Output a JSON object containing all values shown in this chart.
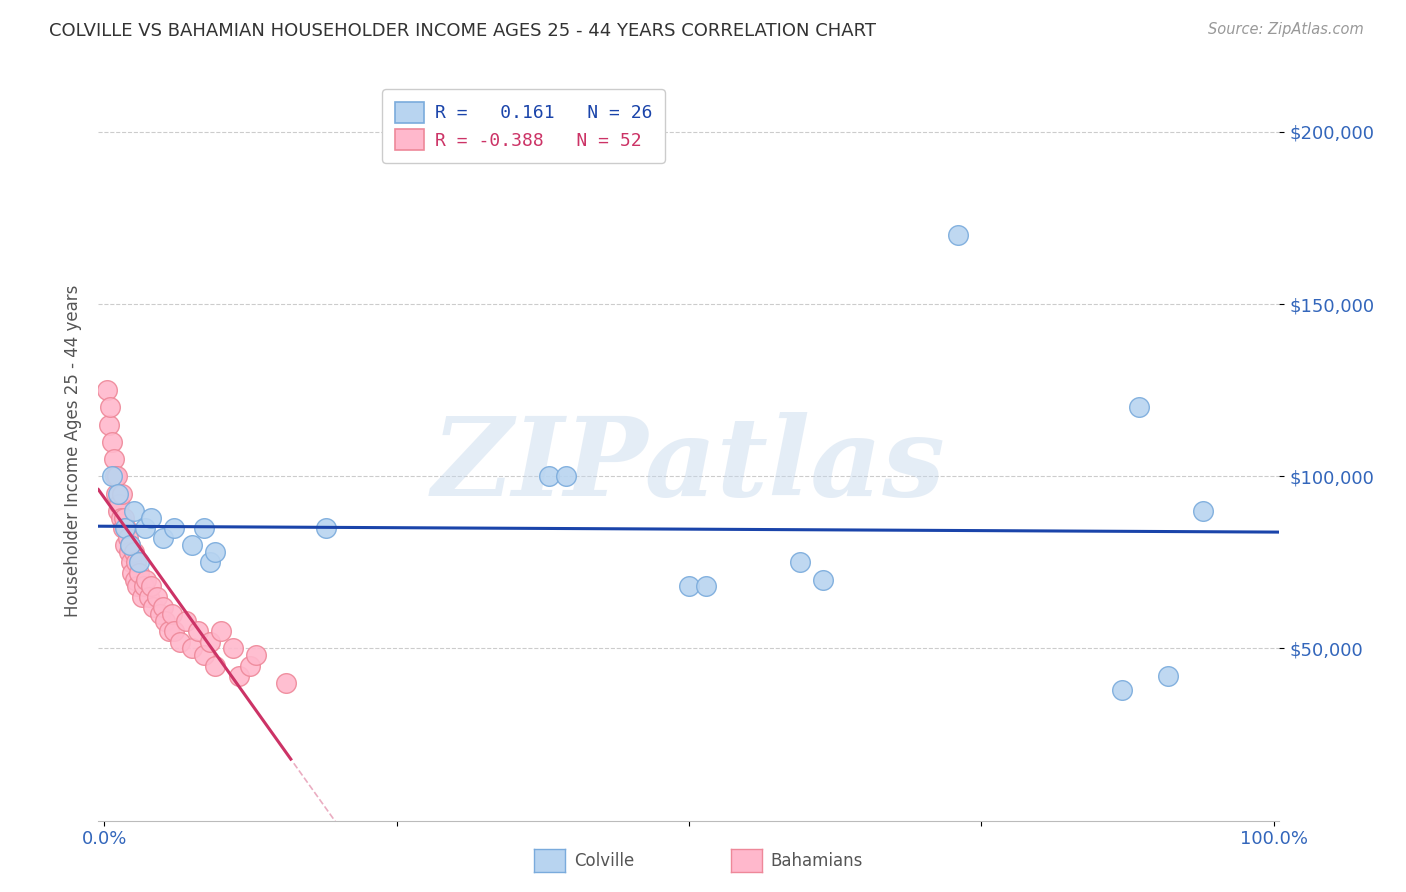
{
  "title": "COLVILLE VS BAHAMIAN HOUSEHOLDER INCOME AGES 25 - 44 YEARS CORRELATION CHART",
  "source": "Source: ZipAtlas.com",
  "ylabel": "Householder Income Ages 25 - 44 years",
  "ytick_labels": [
    "$50,000",
    "$100,000",
    "$150,000",
    "$200,000"
  ],
  "ytick_values": [
    50000,
    100000,
    150000,
    200000
  ],
  "ylim": [
    0,
    215000
  ],
  "xlim": [
    -0.005,
    1.005
  ],
  "legend_blue_r": "R = ",
  "legend_blue_val": "0.161",
  "legend_blue_n": "N = 26",
  "legend_pink_r": "R = -0.388",
  "legend_pink_n": "N = 52",
  "colville_x": [
    0.007,
    0.012,
    0.018,
    0.022,
    0.025,
    0.03,
    0.035,
    0.04,
    0.05,
    0.06,
    0.075,
    0.085,
    0.09,
    0.095,
    0.19,
    0.38,
    0.395,
    0.5,
    0.515,
    0.595,
    0.615,
    0.73,
    0.87,
    0.885,
    0.91,
    0.94
  ],
  "colville_y": [
    100000,
    95000,
    85000,
    80000,
    90000,
    75000,
    85000,
    88000,
    82000,
    85000,
    80000,
    85000,
    75000,
    78000,
    85000,
    100000,
    100000,
    68000,
    68000,
    75000,
    70000,
    170000,
    38000,
    120000,
    42000,
    90000
  ],
  "bahamian_x": [
    0.002,
    0.004,
    0.005,
    0.007,
    0.008,
    0.009,
    0.01,
    0.011,
    0.012,
    0.013,
    0.014,
    0.015,
    0.016,
    0.017,
    0.018,
    0.019,
    0.02,
    0.021,
    0.022,
    0.023,
    0.024,
    0.025,
    0.026,
    0.027,
    0.028,
    0.03,
    0.032,
    0.034,
    0.036,
    0.038,
    0.04,
    0.042,
    0.045,
    0.048,
    0.05,
    0.052,
    0.055,
    0.058,
    0.06,
    0.065,
    0.07,
    0.075,
    0.08,
    0.085,
    0.09,
    0.095,
    0.1,
    0.11,
    0.115,
    0.125,
    0.13,
    0.155
  ],
  "bahamian_y": [
    125000,
    115000,
    120000,
    110000,
    105000,
    100000,
    95000,
    100000,
    90000,
    92000,
    88000,
    95000,
    85000,
    88000,
    80000,
    85000,
    82000,
    78000,
    80000,
    75000,
    72000,
    78000,
    70000,
    75000,
    68000,
    72000,
    65000,
    68000,
    70000,
    65000,
    68000,
    62000,
    65000,
    60000,
    62000,
    58000,
    55000,
    60000,
    55000,
    52000,
    58000,
    50000,
    55000,
    48000,
    52000,
    45000,
    55000,
    50000,
    42000,
    45000,
    48000,
    40000
  ],
  "colville_color": "#b8d4f0",
  "colville_edge_color": "#7aabdc",
  "bahamian_color": "#ffb8cc",
  "bahamian_edge_color": "#ee8899",
  "blue_line_color": "#1a44aa",
  "pink_line_color": "#cc3366",
  "watermark": "ZIPatlas",
  "background_color": "#ffffff",
  "grid_color": "#cccccc"
}
